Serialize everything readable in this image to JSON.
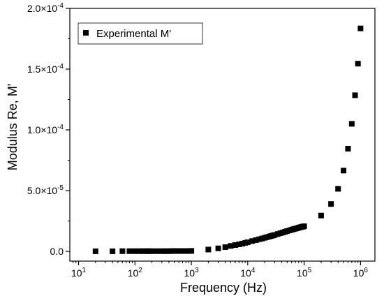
{
  "chart_data": {
    "type": "scatter",
    "title": "",
    "xlabel": "Frequency (Hz)",
    "ylabel": "Modulus Re, M'",
    "x_scale": "log",
    "xlim": [
      7,
      1800000
    ],
    "ylim": [
      -8e-06,
      0.0002
    ],
    "x_ticks": [
      {
        "value": 10,
        "base": "10",
        "exp": "1"
      },
      {
        "value": 100,
        "base": "10",
        "exp": "2"
      },
      {
        "value": 1000,
        "base": "10",
        "exp": "3"
      },
      {
        "value": 10000,
        "base": "10",
        "exp": "4"
      },
      {
        "value": 100000,
        "base": "10",
        "exp": "5"
      },
      {
        "value": 1000000,
        "base": "10",
        "exp": "6"
      }
    ],
    "y_ticks": [
      {
        "value": 0,
        "label": "0.0"
      },
      {
        "value": 5e-05,
        "label": "5.0×10",
        "exp": "-5"
      },
      {
        "value": 0.0001,
        "label": "1.0×10",
        "exp": "-4"
      },
      {
        "value": 0.00015,
        "label": "1.5×10",
        "exp": "-4"
      },
      {
        "value": 0.0002,
        "label": "2.0×10",
        "exp": "-4"
      }
    ],
    "grid": false,
    "legend_position": "top-left",
    "marker": "square",
    "series": [
      {
        "name": "Experimental M'",
        "color": "#000000",
        "x": [
          20,
          40,
          60,
          80,
          100,
          120,
          140,
          160,
          180,
          200,
          250,
          300,
          350,
          400,
          450,
          500,
          600,
          700,
          800,
          900,
          1000,
          2000,
          3000,
          4000,
          5000,
          6000,
          7000,
          8000,
          9000,
          10000,
          12000,
          14000,
          16000,
          18000,
          20000,
          22000,
          24000,
          26000,
          28000,
          30000,
          34000,
          38000,
          42000,
          46000,
          50000,
          55000,
          60000,
          65000,
          70000,
          75000,
          80000,
          85000,
          90000,
          95000,
          100000,
          200000,
          300000,
          400000,
          500000,
          600000,
          700000,
          800000,
          900000,
          1000000
        ],
        "y": [
          1e-07,
          1e-07,
          2e-07,
          2e-07,
          2e-07,
          2e-07,
          2e-07,
          2e-07,
          2e-07,
          2e-07,
          2e-07,
          2e-07,
          2e-07,
          2e-07,
          3e-07,
          3e-07,
          3e-07,
          3e-07,
          3e-07,
          3e-07,
          4e-07,
          1.5e-06,
          2.5e-06,
          3.5e-06,
          4.5e-06,
          5.2e-06,
          5.8e-06,
          6.4e-06,
          7e-06,
          7.5e-06,
          8.5e-06,
          9.3e-06,
          1e-05,
          1.06e-05,
          1.12e-05,
          1.17e-05,
          1.22e-05,
          1.27e-05,
          1.31e-05,
          1.35e-05,
          1.43e-05,
          1.5e-05,
          1.56e-05,
          1.62e-05,
          1.67e-05,
          1.73e-05,
          1.78e-05,
          1.83e-05,
          1.87e-05,
          1.91e-05,
          1.95e-05,
          1.98e-05,
          2.01e-05,
          2.04e-05,
          2.07e-05,
          2.95e-05,
          3.9e-05,
          5.15e-05,
          6.65e-05,
          8.45e-05,
          0.000105,
          0.0001285,
          0.0001545,
          0.0001835
        ]
      }
    ]
  }
}
